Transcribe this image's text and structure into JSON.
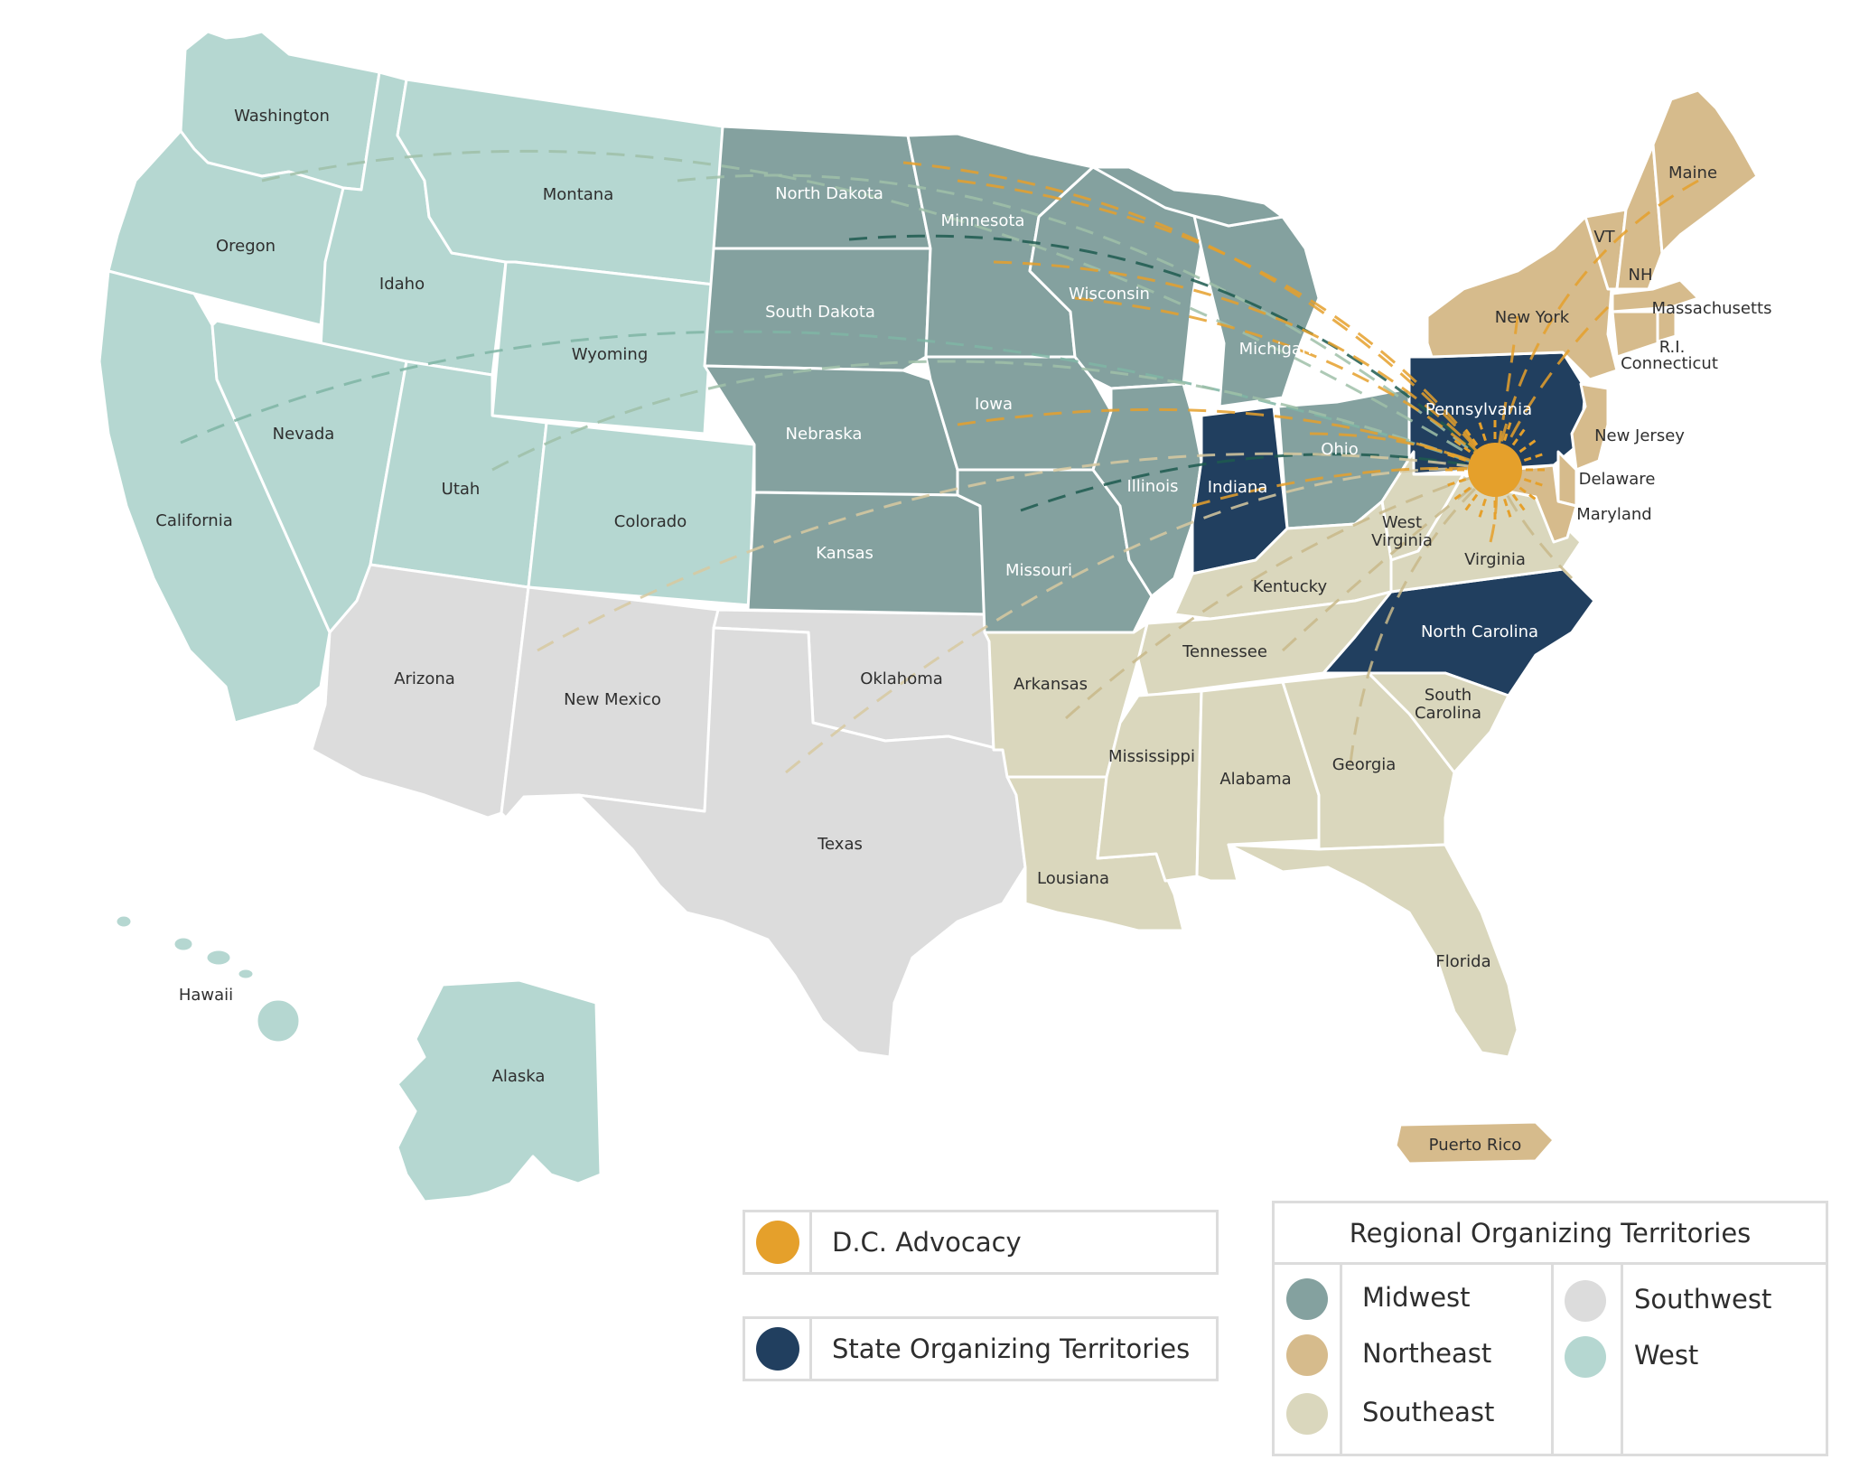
{
  "colors": {
    "midwest": "#84a19f",
    "northeast": "#d6bb8c",
    "southeast": "#dad7bd",
    "southwest": "#dcdcdc",
    "west": "#b5d7d1",
    "state_organizing": "#213f5f",
    "dc_advocacy": "#e5a02b"
  },
  "map": {
    "labels": {
      "washington": "Washington",
      "oregon": "Oregon",
      "california": "California",
      "idaho": "Idaho",
      "nevada": "Nevada",
      "montana": "Montana",
      "wyoming": "Wyoming",
      "utah": "Utah",
      "colorado": "Colorado",
      "arizona": "Arizona",
      "new_mexico": "New Mexico",
      "north_dakota": "North Dakota",
      "south_dakota": "South Dakota",
      "nebraska": "Nebraska",
      "kansas": "Kansas",
      "oklahoma": "Oklahoma",
      "texas": "Texas",
      "minnesota": "Minnesota",
      "iowa": "Iowa",
      "missouri": "Missouri",
      "arkansas": "Arkansas",
      "lousiana": "Lousiana",
      "wisconsin": "Wisconsin",
      "illinois": "Illinois",
      "michigan": "Michigan",
      "indiana": "Indiana",
      "ohio": "Ohio",
      "kentucky": "Kentucky",
      "tennessee": "Tennessee",
      "mississippi": "Mississippi",
      "alabama": "Alabama",
      "georgia": "Georgia",
      "florida": "Florida",
      "south_carolina_1": "South",
      "south_carolina_2": "Carolina",
      "north_carolina": "North Carolina",
      "virginia": "Virginia",
      "west_virginia_1": "West",
      "west_virginia_2": "Virginia",
      "pennsylvania": "Pennsylvania",
      "new_york": "New York",
      "new_jersey": "New Jersey",
      "delaware": "Delaware",
      "maryland": "Maryland",
      "maine": "Maine",
      "vt": "VT",
      "nh": "NH",
      "massachusetts": "Massachusetts",
      "ri": "R.I.",
      "connecticut": "Connecticut",
      "hawaii": "Hawaii",
      "alaska": "Alaska",
      "puerto_rico": "Puerto Rico"
    }
  },
  "legend": {
    "dc_advocacy": "D.C. Advocacy",
    "state_organizing": "State Organizing Territories",
    "regional": {
      "title": "Regional Organizing Territories",
      "midwest": "Midwest",
      "northeast": "Northeast",
      "southeast": "Southeast",
      "southwest": "Southwest",
      "west": "West"
    }
  }
}
